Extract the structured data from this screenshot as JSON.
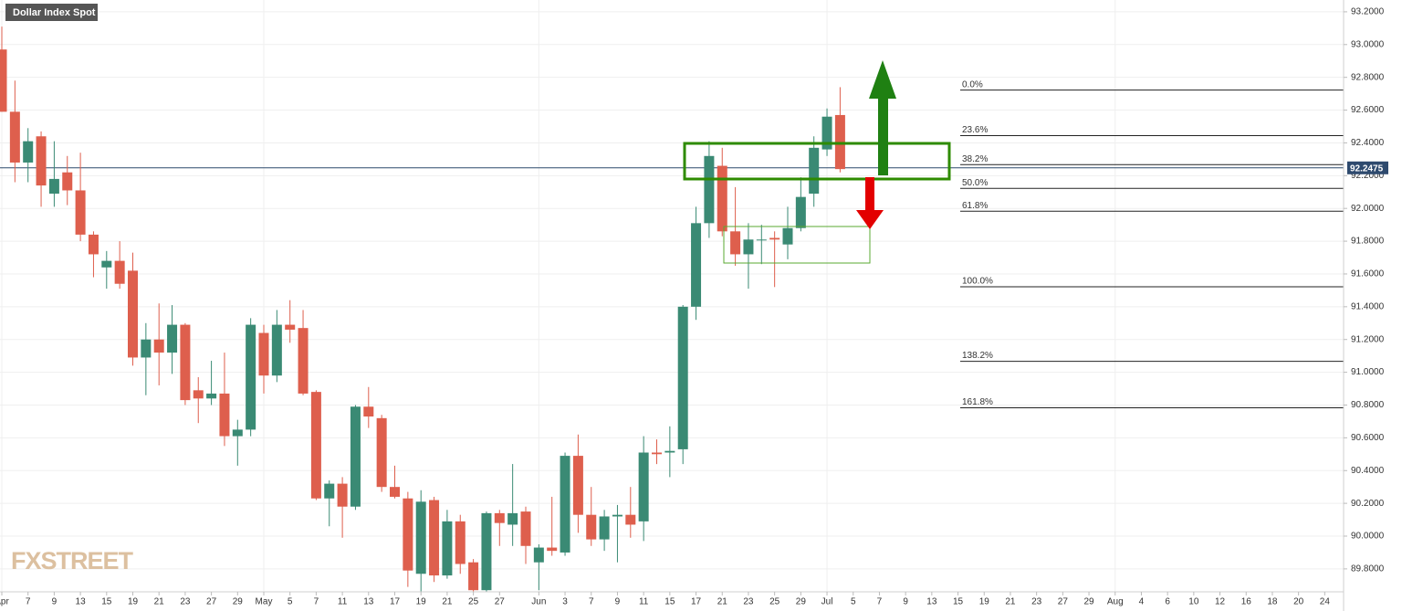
{
  "chart_data": {
    "type": "candlestick",
    "title": "Dollar Index Spot",
    "x": [
      "Apr",
      null,
      "7",
      null,
      "9",
      null,
      "13",
      null,
      "15",
      null,
      "19",
      null,
      "21",
      null,
      "23",
      null,
      "27",
      null,
      "29",
      null,
      "May",
      null,
      "5",
      null,
      "7",
      null,
      "11",
      null,
      "13",
      null,
      "17",
      null,
      "19",
      null,
      "21",
      null,
      "25",
      null,
      "27",
      null,
      null,
      "Jun",
      null,
      "3",
      null,
      "7",
      null,
      "9",
      null,
      "11",
      null,
      "15",
      null,
      "17",
      null,
      "21",
      null,
      "23",
      null,
      "25",
      null,
      "29",
      null,
      "Jul",
      null,
      "5",
      null,
      "7",
      null,
      "9",
      null,
      "13",
      null,
      "15",
      null,
      "19",
      null,
      "21",
      null,
      "23",
      null,
      "27",
      null,
      "29",
      null,
      "Aug",
      null,
      "4",
      null,
      "6",
      null,
      "10",
      null,
      "12",
      null,
      "16",
      null,
      "18",
      null,
      "20",
      null,
      "24",
      null
    ],
    "open": [
      92.97,
      92.59,
      92.28,
      92.44,
      92.09,
      92.22,
      92.11,
      91.84,
      91.64,
      91.68,
      91.62,
      91.09,
      91.2,
      91.12,
      91.29,
      90.89,
      90.84,
      90.87,
      90.61,
      90.65,
      91.24,
      90.98,
      91.29,
      91.27,
      90.88,
      90.23,
      90.32,
      90.18,
      90.79,
      90.72,
      90.3,
      90.23,
      89.77,
      90.22,
      89.76,
      90.09,
      89.84,
      89.67,
      90.14,
      90.07,
      90.15,
      89.84,
      89.93,
      89.9,
      90.49,
      90.13,
      89.98,
      90.12,
      90.13,
      90.09,
      90.51,
      90.51,
      90.53,
      91.4,
      91.91,
      92.26,
      91.86,
      91.72,
      91.81,
      91.82,
      91.78,
      91.88,
      92.09,
      92.36,
      92.57,
      null,
      null,
      null,
      null,
      null,
      null,
      null,
      null,
      null,
      null,
      null,
      null,
      null,
      null,
      null,
      null,
      null,
      null,
      null,
      null,
      null,
      null,
      null,
      null,
      null,
      null,
      null,
      null,
      null,
      null,
      null,
      null,
      null,
      null,
      null,
      null,
      null,
      null
    ],
    "high": [
      93.11,
      92.78,
      92.49,
      92.47,
      92.41,
      92.32,
      92.34,
      91.86,
      91.74,
      91.8,
      91.73,
      91.3,
      91.42,
      91.41,
      91.3,
      90.97,
      91.07,
      91.12,
      90.71,
      91.33,
      91.29,
      91.38,
      91.44,
      91.38,
      90.89,
      90.34,
      90.36,
      90.8,
      90.91,
      90.74,
      90.43,
      90.27,
      90.28,
      90.24,
      90.16,
      90.13,
      89.86,
      90.15,
      90.16,
      90.44,
      90.18,
      89.95,
      90.24,
      90.51,
      90.62,
      90.3,
      90.16,
      90.19,
      90.3,
      90.61,
      90.59,
      90.67,
      91.41,
      92.01,
      92.41,
      92.37,
      92.13,
      91.91,
      91.9,
      91.86,
      92.01,
      92.19,
      92.44,
      92.61,
      92.74,
      null,
      null,
      null,
      null,
      null,
      null,
      null,
      null,
      null,
      null,
      null,
      null,
      null,
      null,
      null,
      null,
      null,
      null,
      null,
      null,
      null,
      null,
      null,
      null,
      null,
      null,
      null,
      null,
      null,
      null,
      null,
      null,
      null,
      null,
      null,
      null,
      null,
      null
    ],
    "low": [
      92.59,
      92.16,
      92.16,
      92.01,
      92.01,
      92.02,
      91.8,
      91.58,
      91.51,
      91.51,
      91.04,
      90.86,
      90.92,
      90.99,
      90.8,
      90.69,
      90.8,
      90.55,
      90.43,
      90.61,
      90.87,
      90.94,
      91.18,
      90.86,
      90.22,
      90.06,
      89.99,
      90.16,
      90.66,
      90.27,
      90.23,
      89.69,
      89.66,
      89.72,
      89.74,
      89.77,
      89.64,
      89.62,
      89.94,
      89.94,
      89.83,
      89.67,
      89.88,
      89.88,
      90.02,
      89.94,
      89.91,
      89.84,
      89.99,
      89.97,
      90.44,
      90.36,
      90.44,
      91.32,
      91.82,
      91.83,
      91.65,
      91.51,
      91.66,
      91.52,
      91.69,
      91.86,
      92.01,
      92.32,
      92.22,
      null,
      null,
      null,
      null,
      null,
      null,
      null,
      null,
      null,
      null,
      null,
      null,
      null,
      null,
      null,
      null,
      null,
      null,
      null,
      null,
      null,
      null,
      null,
      null,
      null,
      null,
      null,
      null,
      null,
      null,
      null,
      null,
      null,
      null,
      null,
      null,
      null,
      null
    ],
    "close": [
      92.59,
      92.28,
      92.41,
      92.14,
      92.18,
      92.11,
      91.84,
      91.72,
      91.68,
      91.54,
      91.09,
      91.2,
      91.12,
      91.29,
      90.83,
      90.84,
      90.87,
      90.61,
      90.65,
      91.29,
      90.98,
      91.29,
      91.26,
      90.87,
      90.23,
      90.32,
      90.18,
      90.79,
      90.73,
      90.3,
      90.24,
      89.79,
      90.21,
      89.76,
      90.09,
      89.83,
      89.67,
      90.14,
      90.08,
      90.14,
      89.94,
      89.93,
      89.91,
      90.49,
      90.13,
      89.98,
      90.12,
      90.13,
      90.07,
      90.51,
      90.5,
      90.52,
      91.4,
      91.91,
      92.32,
      91.86,
      91.72,
      91.81,
      91.81,
      91.81,
      91.88,
      92.07,
      92.37,
      92.56,
      92.24,
      null,
      null,
      null,
      null,
      null,
      null,
      null,
      null,
      null,
      null,
      null,
      null,
      null,
      null,
      null,
      null,
      null,
      null,
      null,
      null,
      null,
      null,
      null,
      null,
      null,
      null,
      null,
      null,
      null,
      null,
      null,
      null,
      null,
      null,
      null,
      null,
      null,
      null
    ],
    "up_color": "#3a8a74",
    "down_color": "#de5f4d",
    "ylim": [
      89.66,
      93.272
    ],
    "yticks": [
      {
        "value": 89.8,
        "label": "89.8000"
      },
      {
        "value": 90.0,
        "label": "90.0000"
      },
      {
        "value": 90.2,
        "label": "90.2000"
      },
      {
        "value": 90.4,
        "label": "90.4000"
      },
      {
        "value": 90.6,
        "label": "90.6000"
      },
      {
        "value": 90.8,
        "label": "90.8000"
      },
      {
        "value": 91.0,
        "label": "91.0000"
      },
      {
        "value": 91.2,
        "label": "91.2000"
      },
      {
        "value": 91.4,
        "label": "91.4000"
      },
      {
        "value": 91.6,
        "label": "91.6000"
      },
      {
        "value": 91.8,
        "label": "91.8000"
      },
      {
        "value": 92.0,
        "label": "92.0000"
      },
      {
        "value": 92.2,
        "label": "92.2000"
      },
      {
        "value": 92.4,
        "label": "92.4000"
      },
      {
        "value": 92.6,
        "label": "92.6000"
      },
      {
        "value": 92.8,
        "label": "92.8000"
      },
      {
        "value": 93.0,
        "label": "93.0000"
      },
      {
        "value": 93.2,
        "label": "93.2000"
      }
    ],
    "grid": true,
    "last_price": 92.2475,
    "fib_levels": [
      {
        "label": "0.0%",
        "value": 92.722
      },
      {
        "label": "23.6%",
        "value": 92.444
      },
      {
        "label": "38.2%",
        "value": 92.267
      },
      {
        "label": "50.0%",
        "value": 92.122
      },
      {
        "label": "61.8%",
        "value": 91.983
      },
      {
        "label": "100.0%",
        "value": 91.522
      },
      {
        "label": "138.2%",
        "value": 91.067
      },
      {
        "label": "161.8%",
        "value": 90.783
      }
    ],
    "watermark": "FXSTREET"
  }
}
